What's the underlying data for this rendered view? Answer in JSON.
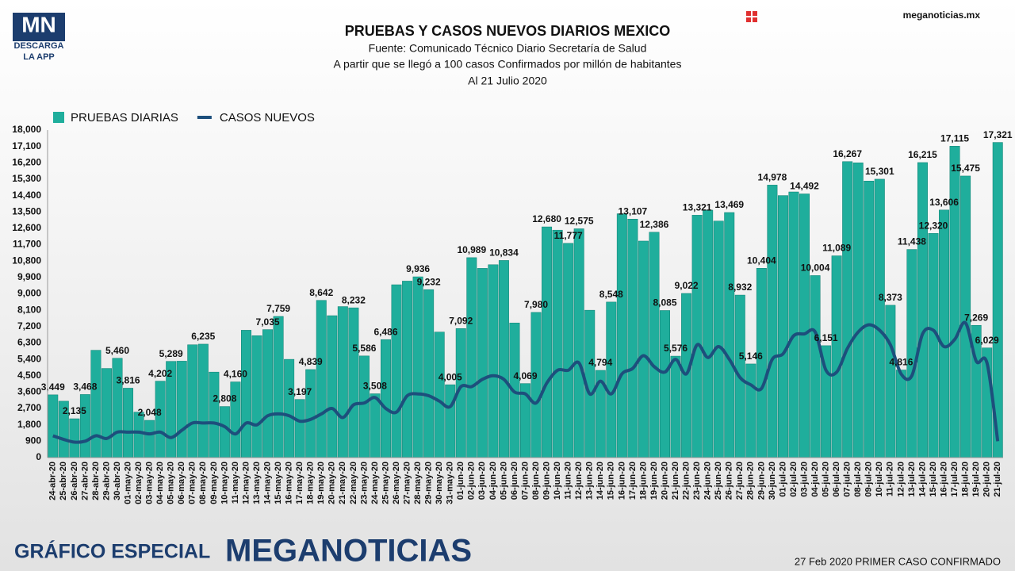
{
  "chart_data": {
    "type": "bar_line",
    "title": "PRUEBAS Y CASOS NUEVOS DIARIOS MEXICO",
    "subtitle": [
      "Fuente: Comunicado Técnico Diario Secretaría de Salud",
      "A partir que se llegó a 100 casos Confirmados por millón de habitantes",
      "Al 21 Julio 2020"
    ],
    "categories": [
      "24-abr-20",
      "25-abr-20",
      "26-abr-20",
      "27-abr-20",
      "28-abr-20",
      "29-abr-20",
      "30-abr-20",
      "01-may-20",
      "02-may-20",
      "03-may-20",
      "04-may-20",
      "05-may-20",
      "06-may-20",
      "07-may-20",
      "08-may-20",
      "09-may-20",
      "10-may-20",
      "11-may-20",
      "12-may-20",
      "13-may-20",
      "14-may-20",
      "15-may-20",
      "16-may-20",
      "17-may-20",
      "18-may-20",
      "19-may-20",
      "20-may-20",
      "21-may-20",
      "22-may-20",
      "23-may-20",
      "24-may-20",
      "25-may-20",
      "26-may-20",
      "27-may-20",
      "28-may-20",
      "29-may-20",
      "30-may-20",
      "31-may-20",
      "01-jun-20",
      "02-jun-20",
      "03-jun-20",
      "04-jun-20",
      "05-jun-20",
      "06-jun-20",
      "07-jun-20",
      "08-jun-20",
      "09-jun-20",
      "10-jun-20",
      "11-jun-20",
      "12-jun-20",
      "13-jun-20",
      "14-jun-20",
      "15-jun-20",
      "16-jun-20",
      "17-jun-20",
      "18-jun-20",
      "19-jun-20",
      "20-jun-20",
      "21-jun-20",
      "22-jun-20",
      "23-jun-20",
      "24-jun-20",
      "25-jun-20",
      "26-jun-20",
      "27-jun-20",
      "28-jun-20",
      "29-jun-20",
      "30-jun-20",
      "01-jul-20",
      "02-jul-20",
      "03-jul-20",
      "04-jul-20",
      "05-jul-20",
      "06-jul-20",
      "07-jul-20",
      "08-jul-20",
      "09-jul-20",
      "10-jul-20",
      "11-jul-20",
      "12-jul-20",
      "13-jul-20",
      "14-jul-20",
      "15-jul-20",
      "16-jul-20",
      "17-jul-20",
      "18-jul-20",
      "19-jul-20",
      "20-jul-20",
      "21-jul-20"
    ],
    "series": [
      {
        "name": "PRUEBAS DIARIAS",
        "type": "bar",
        "color": "#1fae9c",
        "values": [
          3449,
          3100,
          2135,
          3468,
          5900,
          4900,
          5460,
          3816,
          2500,
          2048,
          4202,
          5289,
          5300,
          6200,
          6235,
          4700,
          2808,
          4160,
          7000,
          6700,
          7035,
          7759,
          5400,
          3197,
          4839,
          8642,
          7800,
          8300,
          8232,
          5586,
          3508,
          6486,
          9500,
          9700,
          9936,
          9232,
          6900,
          4005,
          7092,
          10989,
          10400,
          10600,
          10834,
          7400,
          4069,
          7980,
          12680,
          12500,
          11777,
          12575,
          8100,
          4794,
          8548,
          13400,
          13107,
          11900,
          12386,
          8085,
          5576,
          9022,
          13321,
          13600,
          13000,
          13469,
          8932,
          5146,
          10404,
          14978,
          14400,
          14600,
          14492,
          10004,
          6151,
          11089,
          16267,
          16200,
          15200,
          15301,
          8373,
          4816,
          11438,
          16215,
          12320,
          13606,
          17115,
          15475,
          7269,
          6029,
          17321
        ],
        "value_labels": [
          "3,449",
          null,
          "2,135",
          "3,468",
          null,
          null,
          "5,460",
          "3,816",
          null,
          "2,048",
          "4,202",
          "5,289",
          null,
          null,
          "6,235",
          null,
          "2,808",
          "4,160",
          null,
          null,
          "7,035",
          "7,759",
          null,
          "3,197",
          "4,839",
          "8,642",
          null,
          null,
          "8,232",
          "5,586",
          "3,508",
          "6,486",
          null,
          null,
          "9,936",
          "9,232",
          null,
          "4,005",
          "7,092",
          "10,989",
          null,
          null,
          "10,834",
          null,
          "4,069",
          "7,980",
          "12,680",
          null,
          "11,777",
          "12,575",
          null,
          "4,794",
          "8,548",
          null,
          "13,107",
          null,
          "12,386",
          "8,085",
          "5,576",
          "9,022",
          "13,321",
          null,
          null,
          "13,469",
          "8,932",
          "5,146",
          "10,404",
          "14,978",
          null,
          null,
          "14,492",
          "10,004",
          "6,151",
          "11,089",
          "16,267",
          null,
          null,
          "15,301",
          "8,373",
          "4,816",
          "11,438",
          "16,215",
          "12,320",
          "13,606",
          "17,115",
          "15,475",
          "7,269",
          "6,029",
          "17,321"
        ]
      },
      {
        "name": "CASOS NUEVOS",
        "type": "line",
        "color": "#1d4f7c",
        "values": [
          1200,
          1000,
          850,
          900,
          1200,
          1050,
          1400,
          1400,
          1400,
          1300,
          1400,
          1100,
          1500,
          1900,
          1900,
          1900,
          1700,
          1300,
          1900,
          1800,
          2300,
          2400,
          2300,
          2000,
          2100,
          2400,
          2700,
          2200,
          2900,
          3000,
          3300,
          2700,
          2500,
          3400,
          3500,
          3400,
          3100,
          2800,
          3900,
          3900,
          4300,
          4500,
          4300,
          3600,
          3500,
          3000,
          4100,
          4800,
          4800,
          5200,
          3500,
          4200,
          3500,
          4600,
          4900,
          5600,
          5000,
          4700,
          5400,
          4600,
          6200,
          5500,
          6100,
          5400,
          4400,
          4000,
          3800,
          5400,
          5700,
          6700,
          6800,
          6900,
          4800,
          4700,
          6000,
          6900,
          7300,
          7000,
          6200,
          4600,
          4500,
          6800,
          7000,
          6100,
          6500,
          7400,
          5300,
          5200,
          900
        ]
      }
    ],
    "ylim": [
      0,
      18000
    ],
    "yticks": [
      0,
      900,
      {
        "value": 1800,
        "label": "1,800"
      },
      {
        "value": 2700,
        "label": "2,700"
      },
      {
        "value": 3600,
        "label": "3,600"
      },
      {
        "value": 4500,
        "label": "4,500"
      },
      {
        "value": 5400,
        "label": "5,400"
      },
      {
        "value": 6300,
        "label": "6,300"
      },
      {
        "value": 7200,
        "label": "7,200"
      },
      {
        "value": 8100,
        "label": "8,100"
      },
      {
        "value": 9000,
        "label": "9,000"
      },
      {
        "value": 9900,
        "label": "9,900"
      },
      {
        "value": 10800,
        "label": "10,800"
      },
      {
        "value": 11700,
        "label": "11,700"
      },
      {
        "value": 12600,
        "label": "12,600"
      },
      {
        "value": 13500,
        "label": "13,500"
      },
      {
        "value": 14400,
        "label": "14,400"
      },
      {
        "value": 15300,
        "label": "15,300"
      },
      {
        "value": 16200,
        "label": "16,200"
      },
      {
        "value": 17100,
        "label": "17,100"
      },
      {
        "value": 18000,
        "label": "18,000"
      }
    ],
    "grid": false,
    "legend": "top-left"
  },
  "branding": {
    "logo": "MN",
    "logo_sub": "DESCARGA",
    "logo_sub2": "LA APP",
    "site": "meganoticias.mx",
    "footer_left": "GRÁFICO ESPECIAL",
    "footer_brand": "MEGANOTICIAS",
    "footer_note": "27 Feb 2020 PRIMER CASO CONFIRMADO"
  }
}
